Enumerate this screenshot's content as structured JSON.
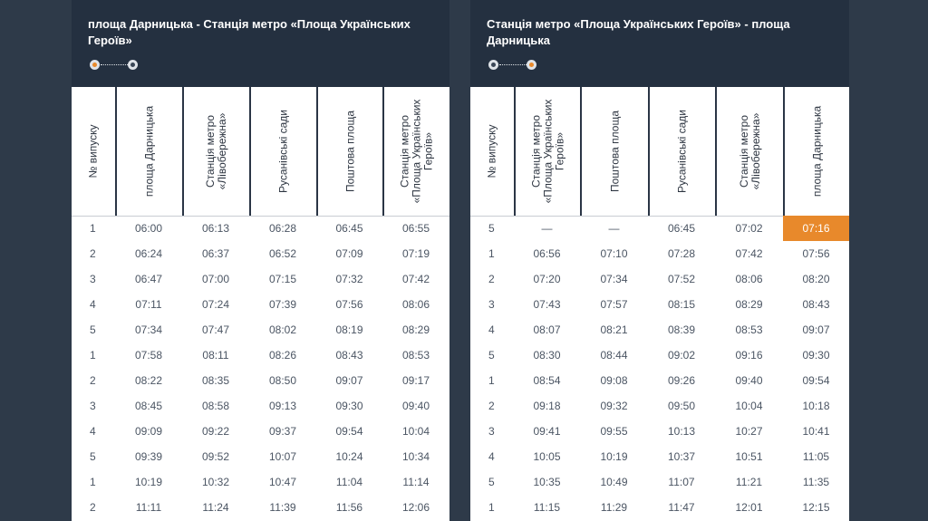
{
  "left_route": {
    "title": "площа Дарницька - Станція метро «Площа Українських Героїв»",
    "columns": [
      "№ випуску",
      "площа Дарницька",
      "Станція метро «Лівобережна»",
      "Русанівські сади",
      "Поштова площа",
      "Станція метро «Площа Українських Героїв»"
    ],
    "rows": [
      [
        "1",
        "06:00",
        "06:13",
        "06:28",
        "06:45",
        "06:55"
      ],
      [
        "2",
        "06:24",
        "06:37",
        "06:52",
        "07:09",
        "07:19"
      ],
      [
        "3",
        "06:47",
        "07:00",
        "07:15",
        "07:32",
        "07:42"
      ],
      [
        "4",
        "07:11",
        "07:24",
        "07:39",
        "07:56",
        "08:06"
      ],
      [
        "5",
        "07:34",
        "07:47",
        "08:02",
        "08:19",
        "08:29"
      ],
      [
        "1",
        "07:58",
        "08:11",
        "08:26",
        "08:43",
        "08:53"
      ],
      [
        "2",
        "08:22",
        "08:35",
        "08:50",
        "09:07",
        "09:17"
      ],
      [
        "3",
        "08:45",
        "08:58",
        "09:13",
        "09:30",
        "09:40"
      ],
      [
        "4",
        "09:09",
        "09:22",
        "09:37",
        "09:54",
        "10:04"
      ],
      [
        "5",
        "09:39",
        "09:52",
        "10:07",
        "10:24",
        "10:34"
      ],
      [
        "1",
        "10:19",
        "10:32",
        "10:47",
        "11:04",
        "11:14"
      ],
      [
        "2",
        "11:11",
        "11:24",
        "11:39",
        "11:56",
        "12:06"
      ]
    ]
  },
  "right_route": {
    "title": "Станція метро «Площа Українських Героїв» - площа Дарницька",
    "columns": [
      "№ випуску",
      "Станція метро «Площа Українських Героїв»",
      "Поштова площа",
      "Русанівські сади",
      "Станція метро «Лівобережна»",
      "площа Дарницька"
    ],
    "rows": [
      [
        "5",
        "—",
        "—",
        "06:45",
        "07:02",
        "07:16"
      ],
      [
        "1",
        "06:56",
        "07:10",
        "07:28",
        "07:42",
        "07:56"
      ],
      [
        "2",
        "07:20",
        "07:34",
        "07:52",
        "08:06",
        "08:20"
      ],
      [
        "3",
        "07:43",
        "07:57",
        "08:15",
        "08:29",
        "08:43"
      ],
      [
        "4",
        "08:07",
        "08:21",
        "08:39",
        "08:53",
        "09:07"
      ],
      [
        "5",
        "08:30",
        "08:44",
        "09:02",
        "09:16",
        "09:30"
      ],
      [
        "1",
        "08:54",
        "09:08",
        "09:26",
        "09:40",
        "09:54"
      ],
      [
        "2",
        "09:18",
        "09:32",
        "09:50",
        "10:04",
        "10:18"
      ],
      [
        "3",
        "09:41",
        "09:55",
        "10:13",
        "10:27",
        "10:41"
      ],
      [
        "4",
        "10:05",
        "10:19",
        "10:37",
        "10:51",
        "11:05"
      ],
      [
        "5",
        "10:35",
        "10:49",
        "11:07",
        "11:21",
        "11:35"
      ],
      [
        "1",
        "11:15",
        "11:29",
        "11:47",
        "12:01",
        "12:15"
      ]
    ],
    "highlight": {
      "row": 0,
      "col": 5
    }
  },
  "colors": {
    "page_bg": "#2e3a49",
    "panel_bg": "#243040",
    "accent": "#e8892b"
  }
}
